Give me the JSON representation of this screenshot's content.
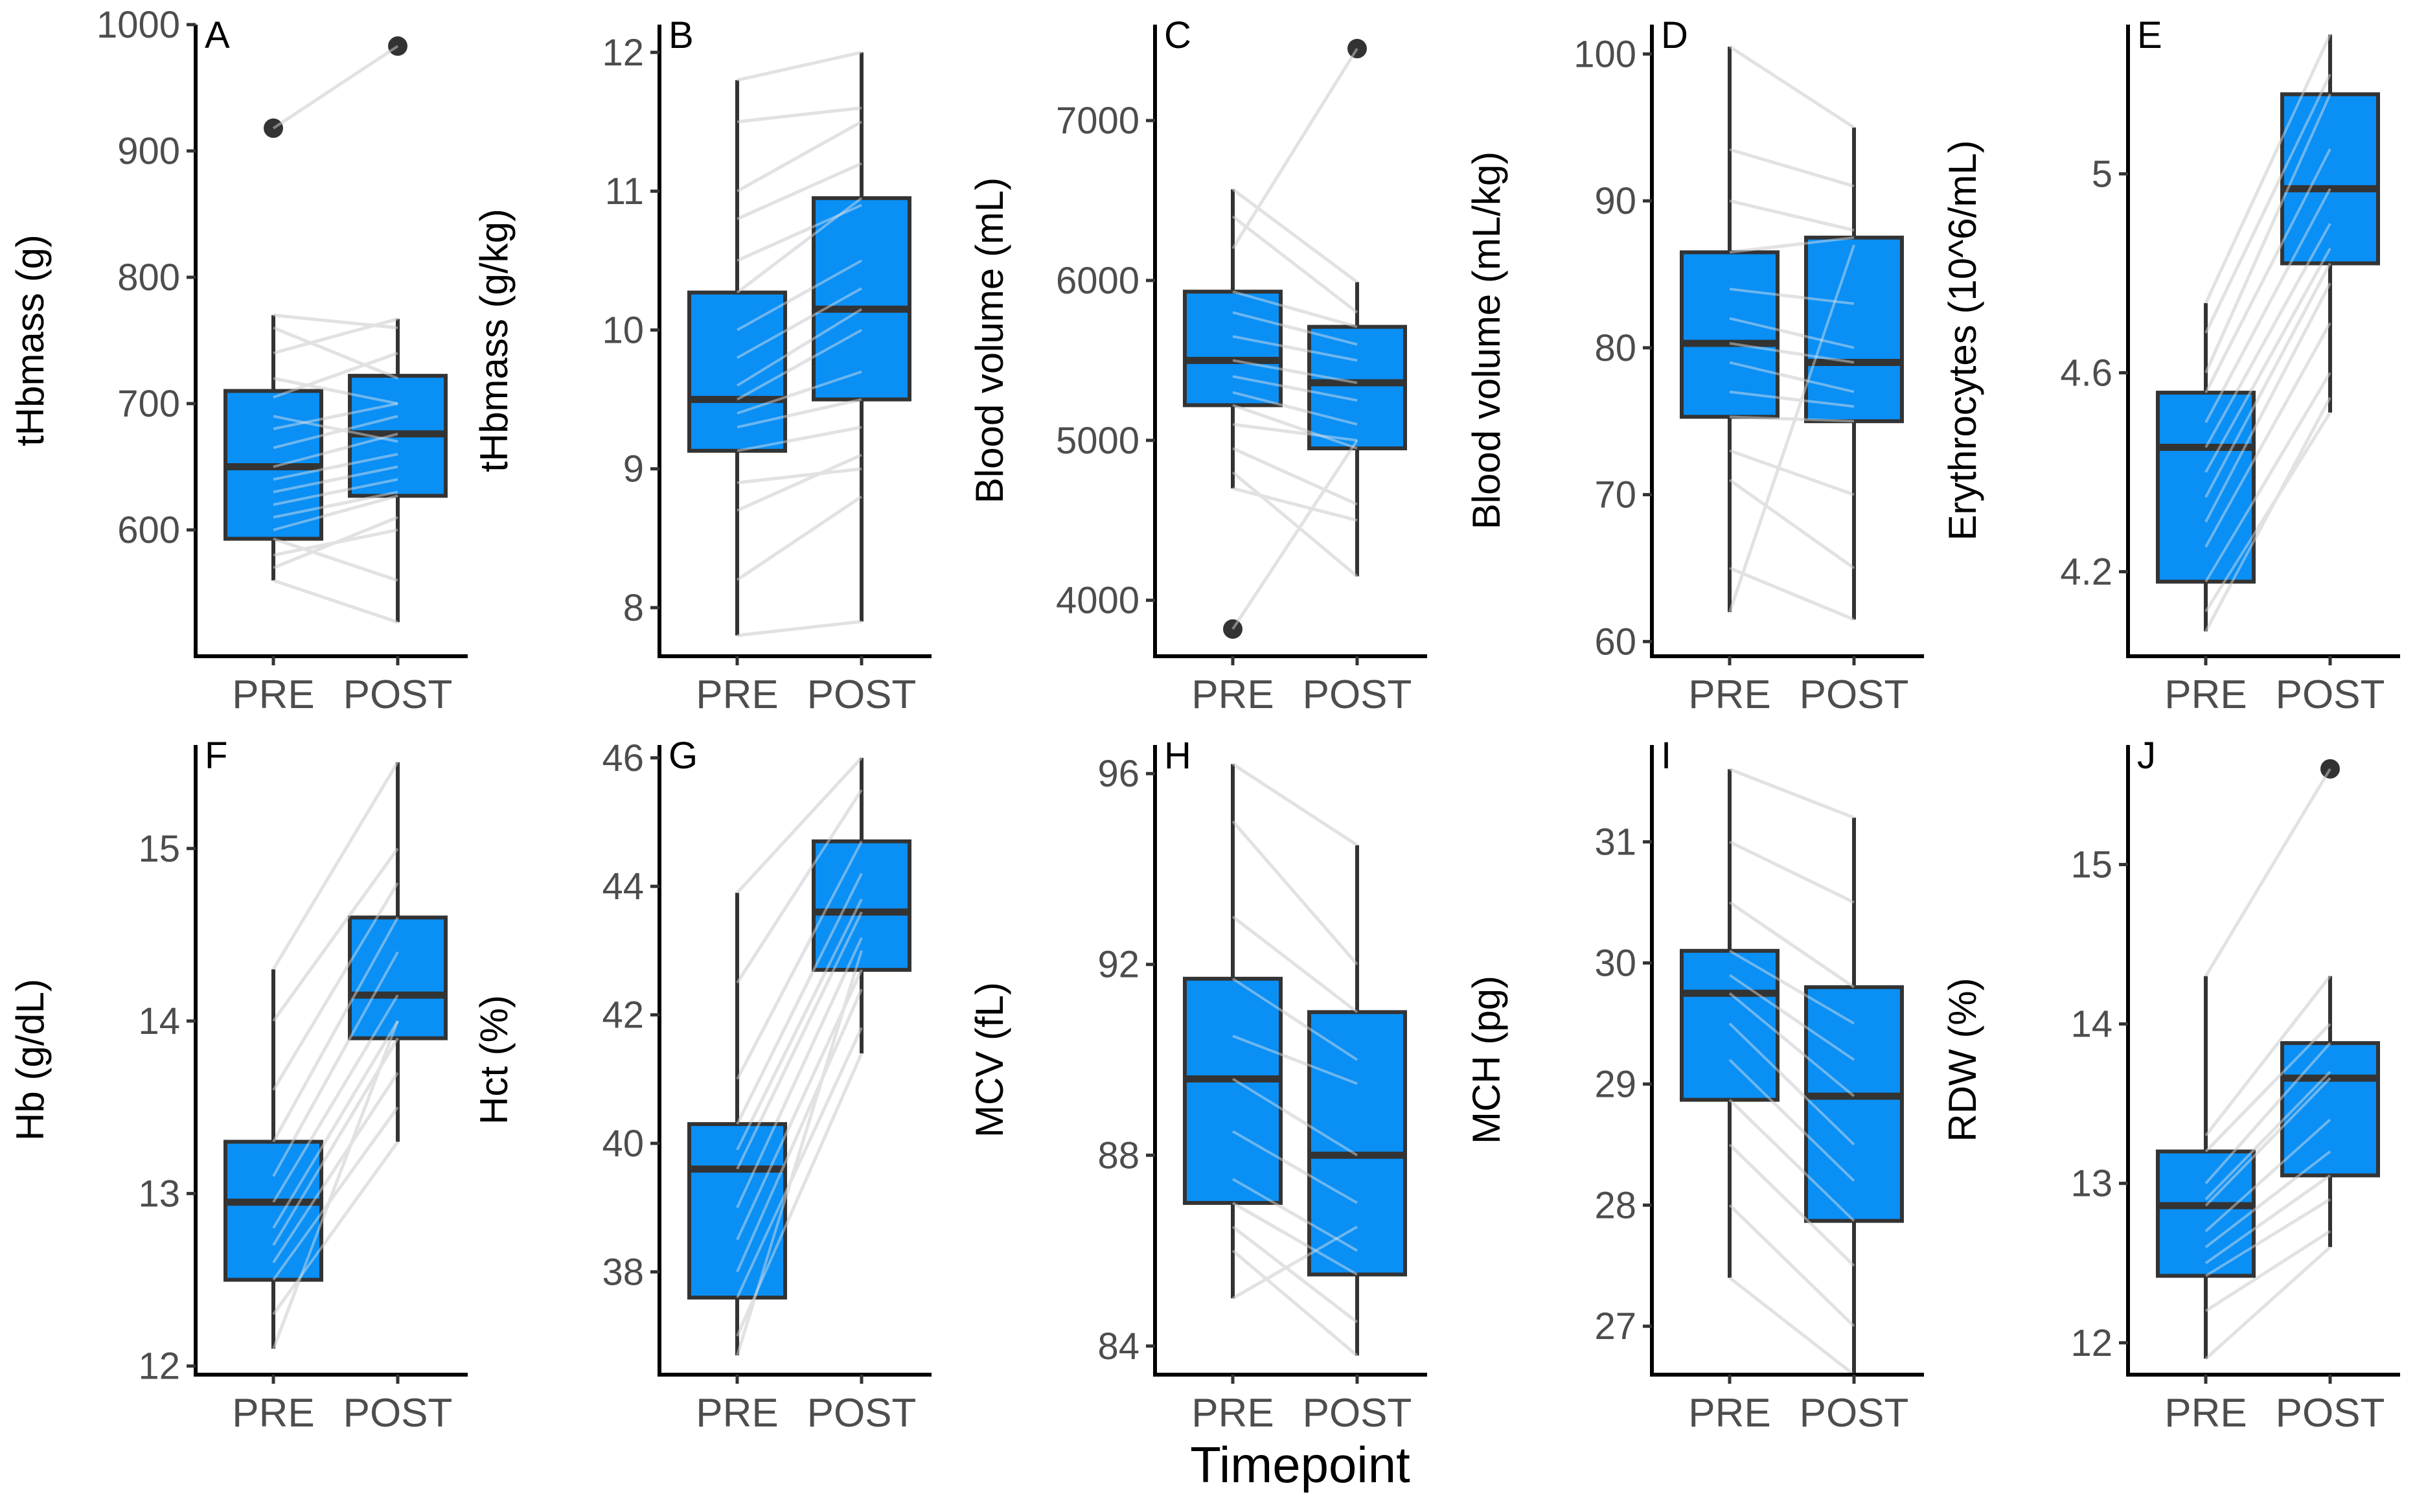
{
  "figure": {
    "x_title": "Timepoint",
    "colors": {
      "box_fill": "#0a8ff5",
      "box_stroke": "#333333",
      "axis": "#000000",
      "tick_text": "#4d4d4d",
      "paired_line": "#d9d9d9",
      "outlier": "#333333"
    }
  },
  "chart_data": [
    {
      "tag": "A",
      "type": "box",
      "ylabel": "tHbmass (g)",
      "categories": [
        "PRE",
        "POST"
      ],
      "ylim": [
        500,
        1000
      ],
      "yticks": [
        600,
        700,
        800,
        900,
        1000
      ],
      "boxes": [
        {
          "name": "PRE",
          "min": 560,
          "q1": 593,
          "median": 650,
          "q3": 710,
          "max": 770,
          "outliers": [
            918
          ]
        },
        {
          "name": "POST",
          "min": 527,
          "q1": 627,
          "median": 676,
          "q3": 722,
          "max": 767,
          "outliers": [
            983
          ]
        }
      ],
      "pairs": [
        [
          918,
          983
        ],
        [
          770,
          760
        ],
        [
          760,
          720
        ],
        [
          740,
          767
        ],
        [
          720,
          700
        ],
        [
          705,
          740
        ],
        [
          690,
          670
        ],
        [
          680,
          700
        ],
        [
          665,
          690
        ],
        [
          650,
          676
        ],
        [
          640,
          660
        ],
        [
          630,
          650
        ],
        [
          620,
          640
        ],
        [
          610,
          630
        ],
        [
          600,
          627
        ],
        [
          593,
          560
        ],
        [
          580,
          600
        ],
        [
          570,
          610
        ],
        [
          560,
          527
        ]
      ]
    },
    {
      "tag": "B",
      "type": "box",
      "ylabel": "tHbmass (g/kg)",
      "categories": [
        "PRE",
        "POST"
      ],
      "ylim": [
        7.65,
        12.2
      ],
      "yticks": [
        8,
        9,
        10,
        11,
        12
      ],
      "boxes": [
        {
          "name": "PRE",
          "min": 7.8,
          "q1": 9.13,
          "median": 9.5,
          "q3": 10.27,
          "max": 11.8,
          "outliers": []
        },
        {
          "name": "POST",
          "min": 7.9,
          "q1": 9.5,
          "median": 10.15,
          "q3": 10.95,
          "max": 12.0,
          "outliers": []
        }
      ],
      "pairs": [
        [
          11.8,
          12.0
        ],
        [
          11.5,
          11.6
        ],
        [
          11.0,
          11.5
        ],
        [
          10.8,
          11.2
        ],
        [
          10.5,
          10.9
        ],
        [
          10.27,
          10.95
        ],
        [
          10.0,
          10.5
        ],
        [
          9.8,
          10.3
        ],
        [
          9.6,
          10.15
        ],
        [
          9.5,
          10.0
        ],
        [
          9.4,
          9.7
        ],
        [
          9.3,
          9.5
        ],
        [
          9.13,
          9.3
        ],
        [
          8.9,
          9.0
        ],
        [
          8.7,
          9.1
        ],
        [
          8.2,
          8.8
        ],
        [
          7.8,
          7.9
        ]
      ]
    },
    {
      "tag": "C",
      "type": "box",
      "ylabel": "Blood volume (mL)",
      "categories": [
        "PRE",
        "POST"
      ],
      "ylim": [
        3650,
        7600
      ],
      "yticks": [
        4000,
        5000,
        6000,
        7000
      ],
      "boxes": [
        {
          "name": "PRE",
          "min": 4700,
          "q1": 5220,
          "median": 5500,
          "q3": 5930,
          "max": 6570,
          "outliers": [
            3820
          ]
        },
        {
          "name": "POST",
          "min": 4150,
          "q1": 4950,
          "median": 5360,
          "q3": 5710,
          "max": 5990,
          "outliers": [
            7450
          ]
        }
      ],
      "pairs": [
        [
          3820,
          5000
        ],
        [
          6570,
          5990
        ],
        [
          6400,
          5800
        ],
        [
          6200,
          7450
        ],
        [
          5930,
          5710
        ],
        [
          5800,
          5600
        ],
        [
          5650,
          5500
        ],
        [
          5500,
          5360
        ],
        [
          5400,
          5250
        ],
        [
          5300,
          5100
        ],
        [
          5220,
          4950
        ],
        [
          5100,
          5000
        ],
        [
          4950,
          4600
        ],
        [
          4800,
          4150
        ],
        [
          4700,
          4500
        ]
      ]
    },
    {
      "tag": "D",
      "type": "box",
      "ylabel": "Blood volume (mL/kg)",
      "categories": [
        "PRE",
        "POST"
      ],
      "ylim": [
        59,
        102
      ],
      "yticks": [
        60,
        70,
        80,
        90,
        100
      ],
      "boxes": [
        {
          "name": "PRE",
          "min": 62,
          "q1": 75.3,
          "median": 80.3,
          "q3": 86.5,
          "max": 100.5,
          "outliers": []
        },
        {
          "name": "POST",
          "min": 61.5,
          "q1": 75,
          "median": 79,
          "q3": 87.5,
          "max": 95,
          "outliers": []
        }
      ],
      "pairs": [
        [
          100.5,
          95
        ],
        [
          93.5,
          91
        ],
        [
          90,
          88
        ],
        [
          86.5,
          87.5
        ],
        [
          84,
          83
        ],
        [
          82,
          80
        ],
        [
          80.3,
          79
        ],
        [
          79,
          77
        ],
        [
          77,
          76
        ],
        [
          75.3,
          75
        ],
        [
          73,
          70
        ],
        [
          71,
          65
        ],
        [
          65,
          61.5
        ],
        [
          62,
          87
        ]
      ]
    },
    {
      "tag": "E",
      "type": "box",
      "ylabel": "Erythrocytes (10^6/mL)",
      "categories": [
        "PRE",
        "POST"
      ],
      "ylim": [
        4.03,
        5.3
      ],
      "yticks": [
        4.2,
        4.6,
        5.0
      ],
      "boxes": [
        {
          "name": "PRE",
          "min": 4.08,
          "q1": 4.18,
          "median": 4.45,
          "q3": 4.56,
          "max": 4.74,
          "outliers": []
        },
        {
          "name": "POST",
          "min": 4.52,
          "q1": 4.82,
          "median": 4.97,
          "q3": 5.16,
          "max": 5.28,
          "outliers": []
        }
      ],
      "pairs": [
        [
          4.74,
          5.28
        ],
        [
          4.68,
          5.2
        ],
        [
          4.6,
          5.16
        ],
        [
          4.56,
          5.05
        ],
        [
          4.5,
          4.97
        ],
        [
          4.45,
          4.9
        ],
        [
          4.4,
          4.85
        ],
        [
          4.35,
          4.82
        ],
        [
          4.3,
          4.78
        ],
        [
          4.25,
          4.7
        ],
        [
          4.18,
          4.6
        ],
        [
          4.12,
          4.52
        ],
        [
          4.08,
          4.55
        ]
      ]
    },
    {
      "tag": "F",
      "type": "box",
      "ylabel": "Hb (g/dL)",
      "categories": [
        "PRE",
        "POST"
      ],
      "ylim": [
        11.95,
        15.6
      ],
      "yticks": [
        12,
        13,
        14,
        15
      ],
      "boxes": [
        {
          "name": "PRE",
          "min": 12.1,
          "q1": 12.5,
          "median": 12.95,
          "q3": 13.3,
          "max": 14.3,
          "outliers": []
        },
        {
          "name": "POST",
          "min": 13.3,
          "q1": 13.9,
          "median": 14.15,
          "q3": 14.6,
          "max": 15.5,
          "outliers": []
        }
      ],
      "pairs": [
        [
          14.3,
          15.5
        ],
        [
          14.0,
          15.0
        ],
        [
          13.6,
          14.8
        ],
        [
          13.3,
          14.6
        ],
        [
          13.1,
          14.4
        ],
        [
          12.95,
          14.15
        ],
        [
          12.8,
          14.0
        ],
        [
          12.7,
          13.9
        ],
        [
          12.6,
          13.7
        ],
        [
          12.5,
          13.5
        ],
        [
          12.3,
          13.3
        ],
        [
          12.1,
          14.0
        ]
      ]
    },
    {
      "tag": "G",
      "type": "box",
      "ylabel": "Hct (%)",
      "categories": [
        "PRE",
        "POST"
      ],
      "ylim": [
        36.4,
        46.2
      ],
      "yticks": [
        38,
        40,
        42,
        44,
        46
      ],
      "boxes": [
        {
          "name": "PRE",
          "min": 36.7,
          "q1": 37.6,
          "median": 39.6,
          "q3": 40.3,
          "max": 43.9,
          "outliers": []
        },
        {
          "name": "POST",
          "min": 41.4,
          "q1": 42.7,
          "median": 43.6,
          "q3": 44.7,
          "max": 46.0,
          "outliers": []
        }
      ],
      "pairs": [
        [
          43.9,
          46.0
        ],
        [
          42.5,
          45.5
        ],
        [
          41.0,
          44.7
        ],
        [
          40.3,
          44.2
        ],
        [
          39.9,
          43.8
        ],
        [
          39.6,
          43.6
        ],
        [
          39.0,
          43.2
        ],
        [
          38.5,
          42.7
        ],
        [
          38.0,
          42.4
        ],
        [
          37.6,
          41.8
        ],
        [
          37.0,
          41.4
        ],
        [
          36.7,
          43.0
        ]
      ]
    },
    {
      "tag": "H",
      "type": "box",
      "ylabel": "MCV (fL)",
      "categories": [
        "PRE",
        "POST"
      ],
      "ylim": [
        83.4,
        96.6
      ],
      "yticks": [
        84,
        88,
        92,
        96
      ],
      "boxes": [
        {
          "name": "PRE",
          "min": 85,
          "q1": 87,
          "median": 89.6,
          "q3": 91.7,
          "max": 96.2,
          "outliers": []
        },
        {
          "name": "POST",
          "min": 83.8,
          "q1": 85.5,
          "median": 88,
          "q3": 91.0,
          "max": 94.5,
          "outliers": []
        }
      ],
      "pairs": [
        [
          96.2,
          94.5
        ],
        [
          95.0,
          92.0
        ],
        [
          93.0,
          91.0
        ],
        [
          91.7,
          90.0
        ],
        [
          90.5,
          89.5
        ],
        [
          89.6,
          88.0
        ],
        [
          88.5,
          87.0
        ],
        [
          87.5,
          86.0
        ],
        [
          87.0,
          85.5
        ],
        [
          86.5,
          84.5
        ],
        [
          86.0,
          83.8
        ],
        [
          85.0,
          86.5
        ]
      ]
    },
    {
      "tag": "I",
      "type": "box",
      "ylabel": "MCH (pg)",
      "categories": [
        "PRE",
        "POST"
      ],
      "ylim": [
        26.6,
        31.8
      ],
      "yticks": [
        27,
        28,
        29,
        30,
        31
      ],
      "boxes": [
        {
          "name": "PRE",
          "min": 27.4,
          "q1": 28.87,
          "median": 29.75,
          "q3": 30.1,
          "max": 31.6,
          "outliers": []
        },
        {
          "name": "POST",
          "min": 26.6,
          "q1": 27.87,
          "median": 28.9,
          "q3": 29.8,
          "max": 31.2,
          "outliers": []
        }
      ],
      "pairs": [
        [
          31.6,
          31.2
        ],
        [
          31.0,
          30.5
        ],
        [
          30.5,
          29.8
        ],
        [
          30.1,
          29.5
        ],
        [
          29.9,
          29.2
        ],
        [
          29.75,
          28.9
        ],
        [
          29.5,
          28.5
        ],
        [
          29.2,
          28.2
        ],
        [
          28.87,
          27.87
        ],
        [
          28.5,
          27.5
        ],
        [
          28.0,
          27.0
        ],
        [
          27.4,
          26.6
        ]
      ]
    },
    {
      "tag": "J",
      "type": "box",
      "ylabel": "RDW (%)",
      "categories": [
        "PRE",
        "POST"
      ],
      "ylim": [
        11.8,
        15.75
      ],
      "yticks": [
        12,
        13,
        14,
        15
      ],
      "boxes": [
        {
          "name": "PRE",
          "min": 11.9,
          "q1": 12.42,
          "median": 12.86,
          "q3": 13.2,
          "max": 14.3,
          "outliers": []
        },
        {
          "name": "POST",
          "min": 12.6,
          "q1": 13.05,
          "median": 13.66,
          "q3": 13.88,
          "max": 14.3,
          "outliers": [
            15.6
          ]
        }
      ],
      "pairs": [
        [
          14.3,
          15.6
        ],
        [
          13.3,
          14.3
        ],
        [
          13.2,
          14.0
        ],
        [
          13.0,
          13.88
        ],
        [
          12.9,
          13.7
        ],
        [
          12.86,
          13.66
        ],
        [
          12.7,
          13.4
        ],
        [
          12.6,
          13.2
        ],
        [
          12.5,
          13.05
        ],
        [
          12.42,
          12.9
        ],
        [
          12.2,
          12.7
        ],
        [
          11.9,
          12.6
        ]
      ]
    }
  ]
}
